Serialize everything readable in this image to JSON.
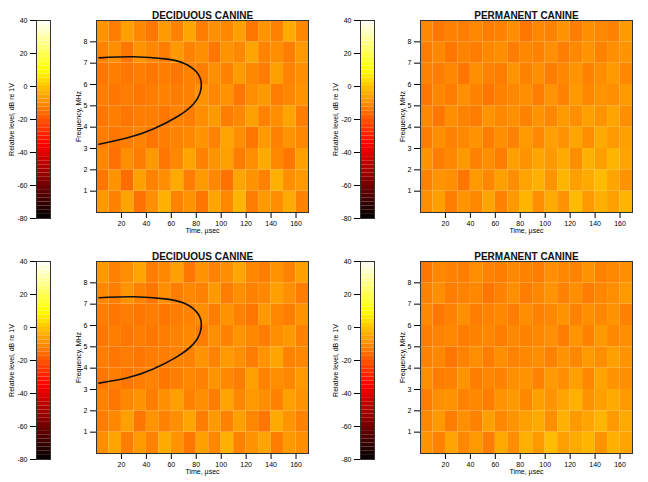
{
  "chart_data": [
    {
      "type": "heatmap",
      "title": "DECIDUOUS CANINE",
      "x_label": "Time, µsec",
      "y_label": "Frequency, MHz",
      "xlim": [
        0,
        170
      ],
      "ylim": [
        0,
        9
      ],
      "xticks": [
        20,
        40,
        60,
        80,
        100,
        120,
        140,
        160
      ],
      "yticks": [
        1,
        2,
        3,
        4,
        5,
        6,
        7,
        8
      ],
      "x": [
        5,
        15,
        25,
        35,
        45,
        55,
        65,
        75,
        85,
        95,
        105,
        115,
        125,
        135,
        145,
        155,
        165
      ],
      "y": [
        0.5,
        1.5,
        2.5,
        3.5,
        4.5,
        5.5,
        6.5,
        7.5,
        8.5
      ],
      "z": [
        [
          -8,
          -12,
          -6,
          -15,
          -10,
          -4,
          -12,
          -9,
          -14,
          -6,
          -11,
          -3,
          -13,
          -8,
          -10,
          -5,
          -12
        ],
        [
          -14,
          -9,
          -16,
          -7,
          -12,
          -10,
          -5,
          -13,
          -8,
          -11,
          -15,
          -6,
          -9,
          -12,
          -4,
          -10,
          -8
        ],
        [
          -11,
          -15,
          -10,
          -13,
          -8,
          -14,
          -11,
          -6,
          -12,
          -9,
          -7,
          -13,
          -10,
          -5,
          -11,
          -14,
          -7
        ],
        [
          -13,
          -14,
          -13,
          -12,
          -14,
          -13,
          -12,
          -11,
          -9,
          -12,
          -6,
          -10,
          -14,
          -8,
          -12,
          -9,
          -11
        ],
        [
          -14,
          -13,
          -14,
          -13,
          -13,
          -14,
          -12,
          -13,
          -10,
          -8,
          -13,
          -11,
          -7,
          -12,
          -10,
          -6,
          -13
        ],
        [
          -13,
          -14,
          -13,
          -14,
          -13,
          -12,
          -13,
          -12,
          -9,
          -11,
          -9,
          -14,
          -10,
          -8,
          -13,
          -11,
          -9
        ],
        [
          -14,
          -13,
          -14,
          -13,
          -14,
          -13,
          -14,
          -12,
          -13,
          -10,
          -12,
          -8,
          -11,
          -13,
          -7,
          -12,
          -10
        ],
        [
          -12,
          -10,
          -14,
          -9,
          -11,
          -13,
          -8,
          -12,
          -10,
          -14,
          -9,
          -11,
          -6,
          -12,
          -10,
          -13,
          -8
        ],
        [
          -9,
          -13,
          -7,
          -11,
          -14,
          -8,
          -12,
          -6,
          -13,
          -10,
          -11,
          -7,
          -14,
          -9,
          -12,
          -5,
          -11
        ]
      ],
      "curve": {
        "x": [
          2,
          30,
          55,
          70,
          80,
          84,
          83,
          78,
          65,
          45,
          25,
          2
        ],
        "y": [
          7.25,
          7.3,
          7.2,
          7.0,
          6.6,
          6.1,
          5.6,
          5.1,
          4.5,
          3.9,
          3.5,
          3.2
        ]
      },
      "colorbar": {
        "label": "Relative level, dB re 1V",
        "clim": [
          -80,
          40
        ],
        "ticks": [
          40,
          20,
          0,
          -20,
          -40,
          -60,
          -80
        ]
      }
    },
    {
      "type": "heatmap",
      "title": "PERMANENT CANINE",
      "x_label": "Time, µsec",
      "y_label": "Frequency, MHz",
      "xlim": [
        0,
        170
      ],
      "ylim": [
        0,
        9
      ],
      "xticks": [
        20,
        40,
        60,
        80,
        100,
        120,
        140,
        160
      ],
      "yticks": [
        1,
        2,
        3,
        4,
        5,
        6,
        7,
        8
      ],
      "x": [
        5,
        15,
        25,
        35,
        45,
        55,
        65,
        75,
        85,
        95,
        105,
        115,
        125,
        135,
        145,
        155,
        165
      ],
      "y": [
        0.5,
        1.5,
        2.5,
        3.5,
        4.5,
        5.5,
        6.5,
        7.5,
        8.5
      ],
      "z": [
        [
          -10,
          -7,
          -13,
          -9,
          -11,
          -6,
          -12,
          -8,
          -3,
          -10,
          -5,
          -9,
          -2,
          -8,
          -4,
          -7,
          -3
        ],
        [
          -12,
          -9,
          -10,
          -14,
          -8,
          -11,
          -7,
          -10,
          -6,
          -4,
          -9,
          -3,
          -7,
          -5,
          -2,
          -6,
          -9
        ],
        [
          -9,
          -13,
          -11,
          -8,
          -12,
          -10,
          -13,
          -7,
          -9,
          -6,
          -8,
          -5,
          -10,
          -4,
          -7,
          -3,
          -6
        ],
        [
          -13,
          -10,
          -12,
          -11,
          -9,
          -13,
          -10,
          -12,
          -8,
          -11,
          -7,
          -9,
          -6,
          -10,
          -5,
          -8,
          -7
        ],
        [
          -11,
          -14,
          -10,
          -12,
          -13,
          -9,
          -11,
          -10,
          -12,
          -9,
          -11,
          -8,
          -10,
          -7,
          -9,
          -6,
          -10
        ],
        [
          -14,
          -11,
          -13,
          -10,
          -12,
          -14,
          -12,
          -11,
          -10,
          -13,
          -9,
          -12,
          -8,
          -11,
          -9,
          -10,
          -8
        ],
        [
          -12,
          -13,
          -11,
          -14,
          -10,
          -12,
          -13,
          -9,
          -12,
          -10,
          -13,
          -11,
          -9,
          -12,
          -10,
          -8,
          -11
        ],
        [
          -13,
          -11,
          -14,
          -12,
          -13,
          -11,
          -10,
          -13,
          -11,
          -12,
          -10,
          -13,
          -11,
          -9,
          -12,
          -10,
          -9
        ],
        [
          -11,
          -14,
          -12,
          -13,
          -11,
          -13,
          -12,
          -10,
          -14,
          -11,
          -12,
          -9,
          -13,
          -10,
          -11,
          -12,
          -8
        ]
      ],
      "colorbar": {
        "label": "Relative level, dB re 1V",
        "clim": [
          -80,
          40
        ],
        "ticks": [
          40,
          20,
          0,
          -20,
          -40,
          -60,
          -80
        ]
      }
    },
    {
      "type": "heatmap",
      "title": "DECIDUOUS CANINE",
      "x_label": "Time, µsec",
      "y_label": "Frequency, MHz",
      "xlim": [
        0,
        170
      ],
      "ylim": [
        0,
        9
      ],
      "xticks": [
        20,
        40,
        60,
        80,
        100,
        120,
        140,
        160
      ],
      "yticks": [
        1,
        2,
        3,
        4,
        5,
        6,
        7,
        8
      ],
      "x": [
        5,
        15,
        25,
        35,
        45,
        55,
        65,
        75,
        85,
        95,
        105,
        115,
        125,
        135,
        145,
        155,
        165
      ],
      "y": [
        0.5,
        1.5,
        2.5,
        3.5,
        4.5,
        5.5,
        6.5,
        7.5,
        8.5
      ],
      "z": [
        [
          -10,
          -6,
          -13,
          -8,
          -12,
          -5,
          -9,
          -14,
          -7,
          -11,
          -4,
          -12,
          -9,
          -6,
          -13,
          -8,
          -10
        ],
        [
          -13,
          -11,
          -7,
          -14,
          -9,
          -12,
          -10,
          -6,
          -13,
          -8,
          -12,
          -7,
          -11,
          -14,
          -5,
          -9,
          -12
        ],
        [
          -12,
          -14,
          -11,
          -9,
          -13,
          -10,
          -7,
          -12,
          -10,
          -13,
          -6,
          -11,
          -8,
          -10,
          -12,
          -7,
          -9
        ],
        [
          -14,
          -13,
          -14,
          -13,
          -12,
          -14,
          -13,
          -11,
          -12,
          -9,
          -11,
          -13,
          -7,
          -12,
          -10,
          -11,
          -8
        ],
        [
          -13,
          -14,
          -13,
          -14,
          -13,
          -13,
          -12,
          -12,
          -9,
          -12,
          -8,
          -10,
          -13,
          -9,
          -6,
          -12,
          -11
        ],
        [
          -14,
          -13,
          -14,
          -13,
          -14,
          -13,
          -12,
          -11,
          -13,
          -10,
          -12,
          -9,
          -11,
          -13,
          -10,
          -8,
          -12
        ],
        [
          -13,
          -14,
          -13,
          -14,
          -13,
          -14,
          -13,
          -12,
          -10,
          -13,
          -9,
          -12,
          -14,
          -8,
          -11,
          -13,
          -9
        ],
        [
          -11,
          -13,
          -9,
          -12,
          -14,
          -10,
          -13,
          -11,
          -12,
          -8,
          -13,
          -10,
          -12,
          -11,
          -7,
          -10,
          -13
        ],
        [
          -8,
          -12,
          -10,
          -6,
          -13,
          -11,
          -7,
          -14,
          -9,
          -12,
          -10,
          -6,
          -11,
          -13,
          -9,
          -12,
          -7
        ]
      ],
      "curve": {
        "x": [
          2,
          30,
          55,
          70,
          80,
          84,
          83,
          78,
          65,
          45,
          25,
          2
        ],
        "y": [
          7.3,
          7.35,
          7.25,
          7.05,
          6.65,
          6.15,
          5.65,
          5.15,
          4.55,
          3.95,
          3.55,
          3.3
        ]
      },
      "colorbar": {
        "label": "Relative level, dB re 1V",
        "clim": [
          -80,
          40
        ],
        "ticks": [
          40,
          20,
          0,
          -20,
          -40,
          -60,
          -80
        ]
      }
    },
    {
      "type": "heatmap",
      "title": "PERMANENT CANINE",
      "x_label": "Time, µsec",
      "y_label": "Frequency, MHz",
      "xlim": [
        0,
        170
      ],
      "ylim": [
        0,
        9
      ],
      "xticks": [
        20,
        40,
        60,
        80,
        100,
        120,
        140,
        160
      ],
      "yticks": [
        1,
        2,
        3,
        4,
        5,
        6,
        7,
        8
      ],
      "x": [
        5,
        15,
        25,
        35,
        45,
        55,
        65,
        75,
        85,
        95,
        105,
        115,
        125,
        135,
        145,
        155,
        165
      ],
      "y": [
        0.5,
        1.5,
        2.5,
        3.5,
        4.5,
        5.5,
        6.5,
        7.5,
        8.5
      ],
      "z": [
        [
          -9,
          -12,
          -6,
          -11,
          -8,
          -13,
          -5,
          -10,
          -4,
          -8,
          -2,
          -7,
          -5,
          -3,
          -9,
          -4,
          -6
        ],
        [
          -11,
          -8,
          -13,
          -10,
          -12,
          -7,
          -11,
          -9,
          -7,
          -5,
          -10,
          -4,
          -8,
          -6,
          -3,
          -8,
          -5
        ],
        [
          -13,
          -10,
          -9,
          -12,
          -11,
          -13,
          -9,
          -8,
          -11,
          -7,
          -9,
          -6,
          -4,
          -9,
          -7,
          -5,
          -8
        ],
        [
          -10,
          -13,
          -12,
          -9,
          -13,
          -11,
          -12,
          -10,
          -9,
          -12,
          -8,
          -10,
          -7,
          -11,
          -6,
          -9,
          -10
        ],
        [
          -12,
          -11,
          -14,
          -12,
          -10,
          -13,
          -10,
          -12,
          -11,
          -10,
          -12,
          -9,
          -11,
          -8,
          -10,
          -7,
          -9
        ],
        [
          -13,
          -12,
          -11,
          -13,
          -12,
          -11,
          -13,
          -11,
          -12,
          -11,
          -10,
          -13,
          -9,
          -12,
          -8,
          -11,
          -10
        ],
        [
          -11,
          -14,
          -12,
          -10,
          -13,
          -12,
          -11,
          -13,
          -10,
          -12,
          -11,
          -9,
          -12,
          -10,
          -11,
          -9,
          -12
        ],
        [
          -12,
          -10,
          -13,
          -12,
          -11,
          -14,
          -12,
          -10,
          -13,
          -11,
          -9,
          -12,
          -10,
          -13,
          -11,
          -10,
          -8
        ],
        [
          -14,
          -11,
          -12,
          -13,
          -10,
          -12,
          -13,
          -11,
          -12,
          -13,
          -10,
          -11,
          -12,
          -9,
          -12,
          -11,
          -10
        ]
      ],
      "colorbar": {
        "label": "Relative level, dB re 1V",
        "clim": [
          -80,
          40
        ],
        "ticks": [
          40,
          20,
          0,
          -20,
          -40,
          -60,
          -80
        ]
      }
    }
  ]
}
